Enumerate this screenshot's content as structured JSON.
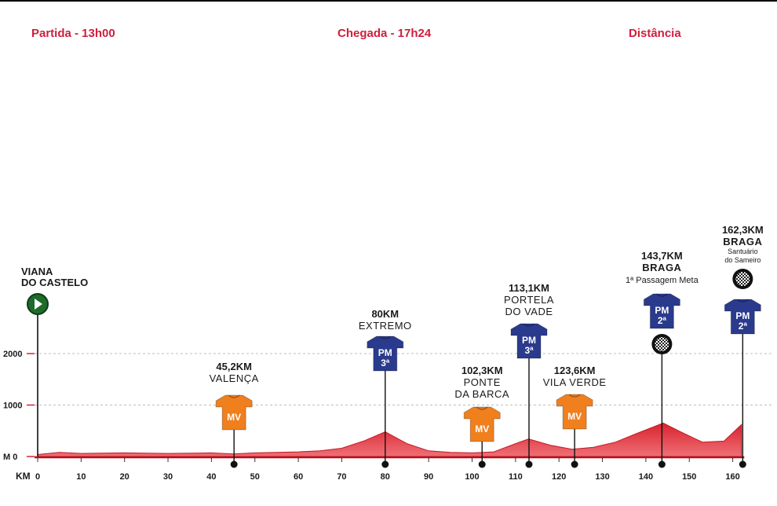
{
  "header": {
    "start": "Partida - 13h00",
    "finish": "Chegada - 17h24",
    "distance": "Distância"
  },
  "colors": {
    "header": "#cf1e3b",
    "profile_fill": "#d8232f",
    "profile_light": "#f07a80",
    "mv_jersey": "#f07f1e",
    "pm_jersey": "#2a3a8c",
    "start_marker": "#1f6b2c"
  },
  "chart_data": {
    "type": "area",
    "title": "",
    "xlabel": "KM",
    "ylabel": "M",
    "xlim": [
      0,
      165
    ],
    "ylim": [
      0,
      2000
    ],
    "x_ticks": [
      0,
      10,
      20,
      30,
      40,
      50,
      60,
      70,
      80,
      90,
      100,
      110,
      120,
      130,
      140,
      150,
      160
    ],
    "y_ticks": [
      {
        "value": 0,
        "label": "M 0"
      },
      {
        "value": 1000,
        "label": "1000"
      },
      {
        "value": 2000,
        "label": "2000"
      }
    ],
    "profile": {
      "x": [
        0,
        5,
        10,
        20,
        30,
        40,
        45,
        50,
        60,
        65,
        70,
        75,
        80,
        85,
        90,
        95,
        100,
        105,
        110,
        113,
        118,
        123,
        128,
        133,
        138,
        144,
        148,
        153,
        158,
        162
      ],
      "y": [
        40,
        80,
        60,
        70,
        60,
        70,
        50,
        70,
        90,
        110,
        160,
        300,
        480,
        250,
        110,
        80,
        70,
        90,
        250,
        340,
        220,
        140,
        180,
        280,
        450,
        650,
        480,
        280,
        300,
        620
      ]
    },
    "start_point": {
      "label_lines": [
        "VIANA",
        "DO CASTELO"
      ],
      "km": 0
    },
    "points": [
      {
        "km": 45.2,
        "type": "MV",
        "title": "45,2KM",
        "lines": [
          "VALENÇA"
        ],
        "jersey_label": "MV",
        "jersey_sub": ""
      },
      {
        "km": 80,
        "type": "PM",
        "title": "80KM",
        "lines": [
          "EXTREMO"
        ],
        "jersey_label": "PM",
        "jersey_sub": "3ª"
      },
      {
        "km": 102.3,
        "type": "MV",
        "title": "102,3KM",
        "lines": [
          "PONTE",
          "DA BARCA"
        ],
        "jersey_label": "MV",
        "jersey_sub": ""
      },
      {
        "km": 113.1,
        "type": "PM",
        "title": "113,1KM",
        "lines": [
          "PORTELA",
          "DO VADE"
        ],
        "jersey_label": "PM",
        "jersey_sub": "3ª"
      },
      {
        "km": 123.6,
        "type": "MV",
        "title": "123,6KM",
        "lines": [
          "VILA VERDE"
        ],
        "jersey_label": "MV",
        "jersey_sub": ""
      },
      {
        "km": 143.7,
        "type": "PM",
        "title": "143,7KM",
        "lines": [
          "BRAGA"
        ],
        "small": [
          "1ª Passagem Meta"
        ],
        "jersey_label": "PM",
        "jersey_sub": "2ª",
        "finish_flag": true
      },
      {
        "km": 162.3,
        "type": "PM",
        "title": "162,3KM",
        "lines": [
          "BRAGA"
        ],
        "small": [
          "Santuário",
          "do Sameiro"
        ],
        "jersey_label": "PM",
        "jersey_sub": "2ª",
        "finish_flag": true
      }
    ]
  }
}
